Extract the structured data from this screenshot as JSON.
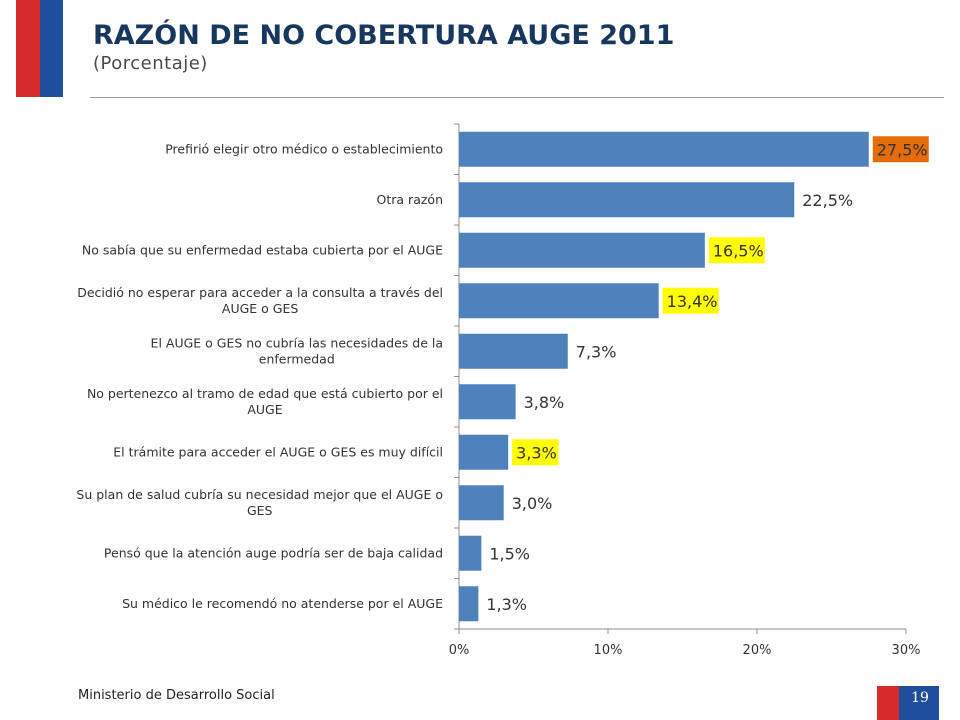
{
  "header": {
    "title": "RAZÓN DE NO COBERTURA AUGE 2011",
    "subtitle": "(Porcentaje)"
  },
  "footer": {
    "ministry": "Ministerio de Desarrollo Social",
    "page_number": "19"
  },
  "colors": {
    "bar": "#4f81bd",
    "title": "#17375e",
    "highlight_yellow": "#ffff00",
    "highlight_orange": "#e46c0a",
    "flag_red": "#d52b2b",
    "flag_blue": "#1f4e9c"
  },
  "chart_data": {
    "type": "bar",
    "orientation": "horizontal",
    "title": "RAZÓN DE NO COBERTURA AUGE 2011",
    "subtitle": "(Porcentaje)",
    "xlim": [
      0,
      30
    ],
    "x_ticks": [
      "0%",
      "10%",
      "20%",
      "30%"
    ],
    "grid": false,
    "legend": "none",
    "categories": [
      [
        "Prefirió elegir otro médico o establecimiento"
      ],
      [
        "Otra razón"
      ],
      [
        "No sabía que su enfermedad estaba cubierta por el AUGE"
      ],
      [
        "Decidió no esperar para acceder a la consulta a través del",
        "AUGE o GES"
      ],
      [
        "El AUGE o GES no cubría las necesidades de la",
        "enfermedad"
      ],
      [
        "No pertenezco al tramo de edad que está cubierto por el",
        "AUGE"
      ],
      [
        "El trámite para acceder el AUGE o GES es muy difícil"
      ],
      [
        "Su plan de salud cubría su necesidad mejor que el AUGE o",
        "GES"
      ],
      [
        "Pensó que la atención auge podría ser de baja calidad"
      ],
      [
        "Su médico le recomendó no atenderse por el AUGE"
      ]
    ],
    "values": [
      27.5,
      22.5,
      16.5,
      13.4,
      7.3,
      3.8,
      3.3,
      3.0,
      1.5,
      1.3
    ],
    "value_labels": [
      "27,5%",
      "22,5%",
      "16,5%",
      "13,4%",
      "7,3%",
      "3,8%",
      "3,3%",
      "3,0%",
      "1,5%",
      "1,3%"
    ],
    "label_highlights": [
      "orange",
      "none",
      "yellow",
      "yellow",
      "none",
      "none",
      "yellow",
      "none",
      "none",
      "none"
    ]
  }
}
